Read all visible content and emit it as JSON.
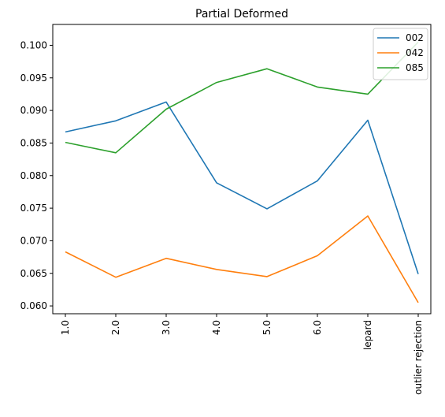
{
  "chart_data": {
    "type": "line",
    "title": "Partial Deformed",
    "xlabel": "",
    "ylabel": "",
    "categories": [
      "1.0",
      "2.0",
      "3.0",
      "4.0",
      "5.0",
      "6.0",
      "lepard",
      "outlier rejection"
    ],
    "ylim": [
      0.0588,
      0.1032
    ],
    "yticks": [
      "0.060",
      "0.065",
      "0.070",
      "0.075",
      "0.080",
      "0.085",
      "0.090",
      "0.095",
      "0.100"
    ],
    "grid": false,
    "legend_position": "top-right",
    "series": [
      {
        "name": "002",
        "color": "#1f77b4",
        "values": [
          0.0867,
          0.0884,
          0.0913,
          0.0789,
          0.0749,
          0.0792,
          0.0885,
          0.0649
        ]
      },
      {
        "name": "042",
        "color": "#ff7f0e",
        "values": [
          0.0683,
          0.0644,
          0.0673,
          0.0656,
          0.0645,
          0.0677,
          0.0738,
          0.0605
        ]
      },
      {
        "name": "085",
        "color": "#2ca02c",
        "values": [
          0.0851,
          0.0835,
          0.0902,
          0.0943,
          0.0964,
          0.0936,
          0.0925,
          0.1005
        ]
      }
    ]
  }
}
